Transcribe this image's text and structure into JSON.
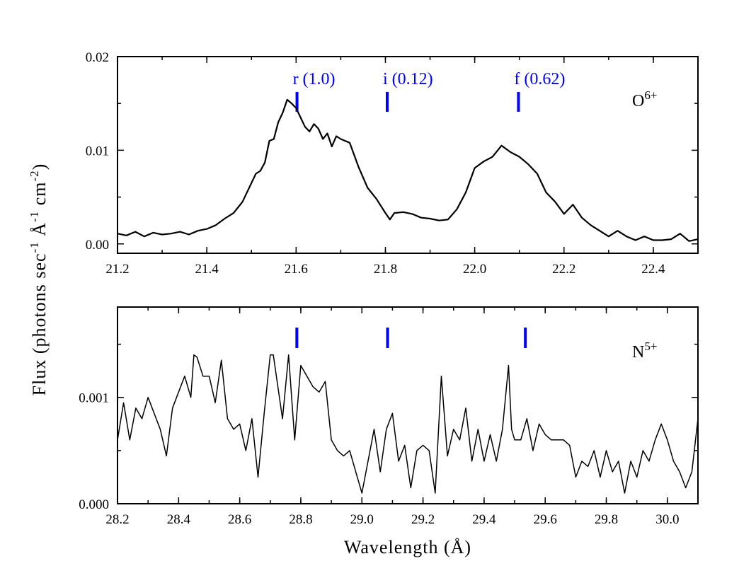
{
  "chart_data": [
    {
      "type": "line",
      "panel": "top",
      "ion_label": "O",
      "ion_superscript": "6+",
      "xlim": [
        21.2,
        22.5
      ],
      "ylim": [
        -0.001,
        0.02
      ],
      "x_ticks": [
        "21.2",
        "21.4",
        "21.6",
        "21.8",
        "22.0",
        "22.2",
        "22.4"
      ],
      "y_ticks": [
        "0.00",
        "0.01",
        "0.02"
      ],
      "x_tick_values": [
        21.2,
        21.4,
        21.6,
        21.8,
        22.0,
        22.2,
        22.4
      ],
      "y_tick_values": [
        0.0,
        0.01,
        0.02
      ],
      "line_color": "#000000",
      "marker_color": "#0000ff",
      "line_markers": [
        {
          "x": 21.602,
          "label": "r (1.0)"
        },
        {
          "x": 21.804,
          "label": "i (0.12)"
        },
        {
          "x": 22.098,
          "label": "f (0.62)"
        }
      ],
      "series": [
        {
          "x": [
            21.2,
            21.22,
            21.24,
            21.26,
            21.28,
            21.3,
            21.32,
            21.34,
            21.36,
            21.38,
            21.4,
            21.42,
            21.44,
            21.46,
            21.48,
            21.5,
            21.51,
            21.52,
            21.53,
            21.54,
            21.55,
            21.56,
            21.57,
            21.58,
            21.59,
            21.6,
            21.61,
            21.62,
            21.63,
            21.64,
            21.65,
            21.66,
            21.67,
            21.68,
            21.69,
            21.7,
            21.72,
            21.74,
            21.76,
            21.78,
            21.8,
            21.81,
            21.82,
            21.84,
            21.86,
            21.88,
            21.9,
            21.92,
            21.94,
            21.96,
            21.98,
            22.0,
            22.02,
            22.04,
            22.06,
            22.08,
            22.1,
            22.12,
            22.14,
            22.16,
            22.18,
            22.2,
            22.22,
            22.24,
            22.26,
            22.28,
            22.3,
            22.32,
            22.34,
            22.36,
            22.38,
            22.4,
            22.42,
            22.44,
            22.46,
            22.48,
            22.5
          ],
          "y": [
            0.0011,
            0.0009,
            0.0013,
            0.0008,
            0.0012,
            0.001,
            0.0011,
            0.0013,
            0.001,
            0.0014,
            0.0016,
            0.002,
            0.0027,
            0.0033,
            0.0045,
            0.0065,
            0.0075,
            0.0078,
            0.0087,
            0.011,
            0.0112,
            0.013,
            0.014,
            0.0154,
            0.015,
            0.0145,
            0.0135,
            0.0125,
            0.012,
            0.0128,
            0.0123,
            0.0112,
            0.0118,
            0.0104,
            0.0115,
            0.0112,
            0.0108,
            0.0082,
            0.006,
            0.0048,
            0.0033,
            0.0026,
            0.0033,
            0.0034,
            0.0032,
            0.0028,
            0.0027,
            0.0025,
            0.0026,
            0.0037,
            0.0055,
            0.0081,
            0.0088,
            0.0093,
            0.0105,
            0.0098,
            0.0093,
            0.0085,
            0.0075,
            0.0055,
            0.0045,
            0.0032,
            0.0042,
            0.0028,
            0.002,
            0.0014,
            0.0008,
            0.0014,
            0.0008,
            0.0004,
            0.0008,
            0.0004,
            0.0004,
            0.0005,
            0.0011,
            0.0003,
            0.0005
          ]
        }
      ]
    },
    {
      "type": "line",
      "panel": "bottom",
      "ion_label": "N",
      "ion_superscript": "5+",
      "xlim": [
        28.2,
        30.1
      ],
      "ylim": [
        0.0,
        0.00185
      ],
      "x_ticks": [
        "28.2",
        "28.4",
        "28.6",
        "28.8",
        "29.0",
        "29.2",
        "29.4",
        "29.6",
        "29.8",
        "30.0"
      ],
      "y_ticks": [
        "0.000",
        "0.001"
      ],
      "x_tick_values": [
        28.2,
        28.4,
        28.6,
        28.8,
        29.0,
        29.2,
        29.4,
        29.6,
        29.8,
        30.0
      ],
      "y_tick_values": [
        0.0,
        0.001
      ],
      "line_color": "#000000",
      "marker_color": "#0000ff",
      "line_markers": [
        {
          "x": 28.787,
          "label": ""
        },
        {
          "x": 29.084,
          "label": ""
        },
        {
          "x": 29.535,
          "label": ""
        }
      ],
      "series": [
        {
          "x": [
            28.2,
            28.22,
            28.24,
            28.26,
            28.28,
            28.3,
            28.32,
            28.34,
            28.36,
            28.38,
            28.4,
            28.42,
            28.44,
            28.45,
            28.46,
            28.48,
            28.5,
            28.52,
            28.54,
            28.56,
            28.58,
            28.6,
            28.62,
            28.64,
            28.66,
            28.68,
            28.7,
            28.71,
            28.72,
            28.74,
            28.76,
            28.78,
            28.8,
            28.82,
            28.84,
            28.86,
            28.88,
            28.9,
            28.92,
            28.94,
            28.96,
            28.98,
            29.0,
            29.02,
            29.04,
            29.06,
            29.08,
            29.1,
            29.12,
            29.14,
            29.16,
            29.18,
            29.2,
            29.22,
            29.24,
            29.26,
            29.28,
            29.3,
            29.32,
            29.34,
            29.36,
            29.38,
            29.4,
            29.42,
            29.44,
            29.46,
            29.48,
            29.49,
            29.5,
            29.52,
            29.54,
            29.56,
            29.58,
            29.6,
            29.62,
            29.64,
            29.66,
            29.68,
            29.7,
            29.72,
            29.74,
            29.76,
            29.78,
            29.8,
            29.82,
            29.84,
            29.86,
            29.88,
            29.9,
            29.92,
            29.94,
            29.96,
            29.98,
            30.0,
            30.02,
            30.04,
            30.06,
            30.08,
            30.1
          ],
          "y": [
            0.0006,
            0.00095,
            0.0006,
            0.0009,
            0.0008,
            0.001,
            0.00085,
            0.0007,
            0.00045,
            0.0009,
            0.00105,
            0.0012,
            0.001,
            0.0014,
            0.00138,
            0.0012,
            0.0012,
            0.00095,
            0.00135,
            0.0008,
            0.0007,
            0.00075,
            0.0005,
            0.0008,
            0.00025,
            0.00085,
            0.0014,
            0.0014,
            0.0012,
            0.0008,
            0.0014,
            0.0006,
            0.0013,
            0.0012,
            0.0011,
            0.00105,
            0.00115,
            0.0006,
            0.0005,
            0.00045,
            0.0005,
            0.0003,
            0.0001,
            0.0004,
            0.0007,
            0.0003,
            0.0007,
            0.00085,
            0.0004,
            0.00055,
            0.00015,
            0.0005,
            0.00055,
            0.0005,
            0.0001,
            0.0012,
            0.00045,
            0.0007,
            0.0006,
            0.0009,
            0.0004,
            0.0007,
            0.0004,
            0.00065,
            0.0004,
            0.0007,
            0.0013,
            0.0007,
            0.0006,
            0.0006,
            0.0008,
            0.0005,
            0.00075,
            0.00065,
            0.0006,
            0.0006,
            0.0006,
            0.00055,
            0.00025,
            0.0004,
            0.00035,
            0.0005,
            0.00025,
            0.0005,
            0.0003,
            0.0004,
            0.0001,
            0.0004,
            0.00025,
            0.0005,
            0.0004,
            0.0006,
            0.00075,
            0.0006,
            0.0004,
            0.0003,
            0.00015,
            0.0003,
            0.0008
          ]
        }
      ]
    }
  ],
  "shared": {
    "xlabel": "Wavelength (Å)",
    "ylabel": "Flux (photons sec",
    "ylabel_sup1": "-1",
    "ylabel_mid": " Å",
    "ylabel_sup2": "-1",
    "ylabel_mid2": " cm",
    "ylabel_sup3": "-2",
    "ylabel_end": ")"
  }
}
